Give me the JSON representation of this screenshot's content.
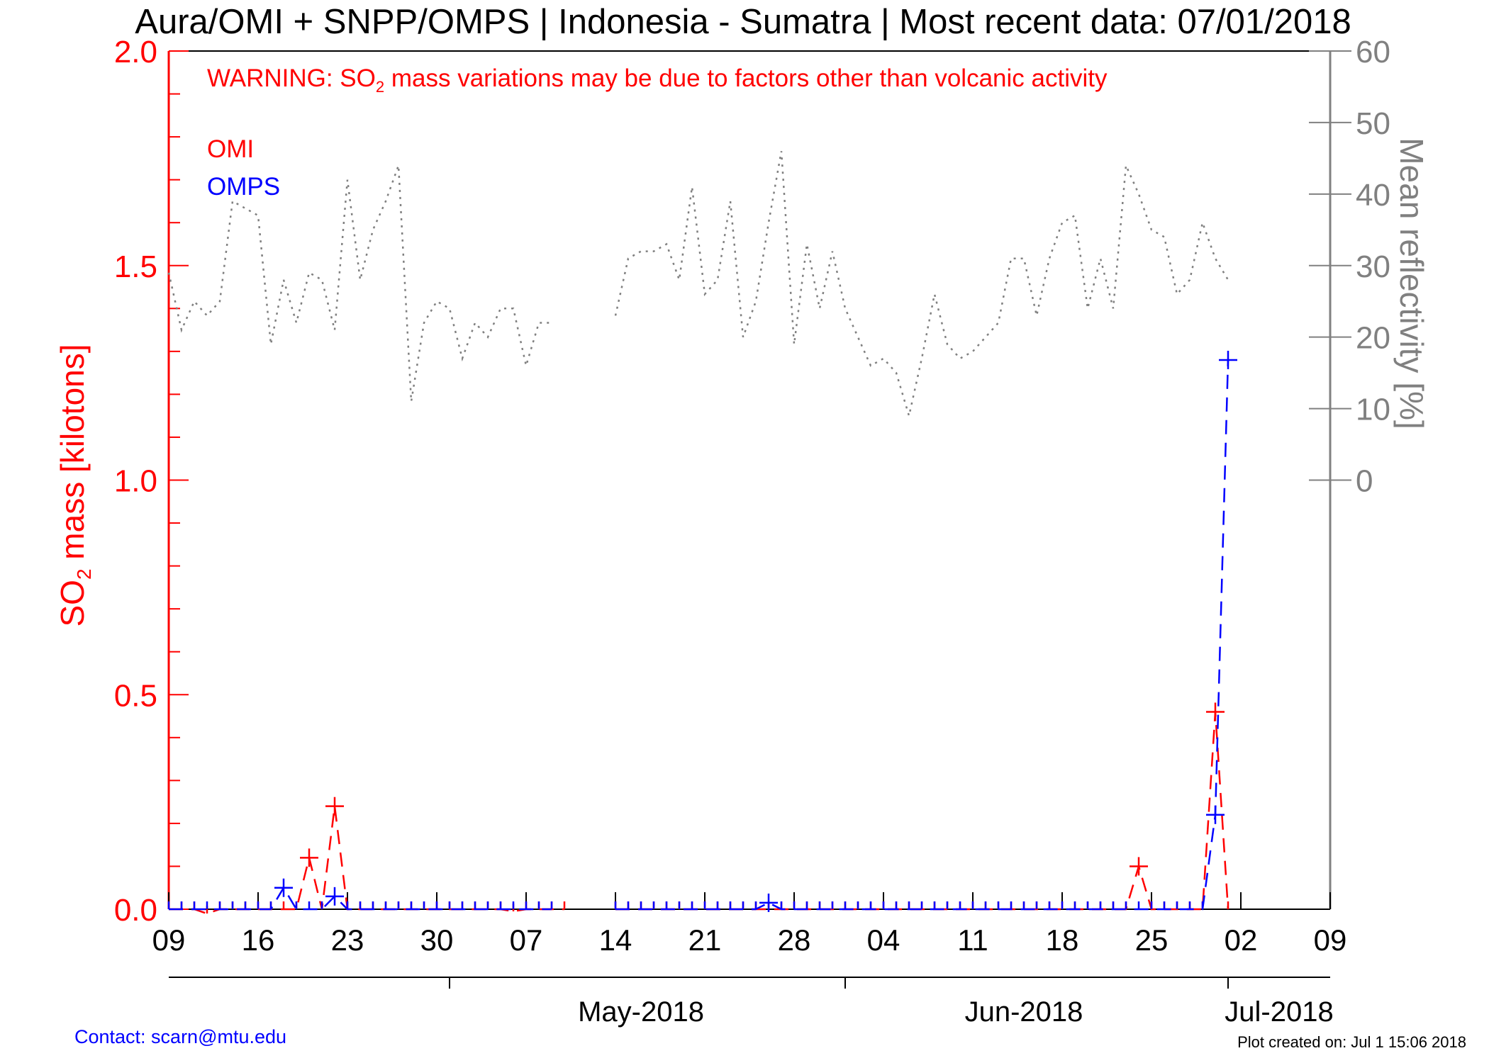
{
  "colors": {
    "omi": "#ff0000",
    "omps": "#0000ff",
    "reflectivity": "#808080",
    "axis": "#000000",
    "link": "#0000ff"
  },
  "title": "Aura/OMI + SNPP/OMPS | Indonesia - Sumatra | Most recent data: 07/01/2018",
  "warning": {
    "prefix": "WARNING: SO",
    "subscript": "2",
    "suffix": " mass variations may be due to factors other than volcanic activity"
  },
  "footer": {
    "contact": "Contact: scarn@mtu.edu",
    "created": "Plot created on: Jul  1 15:06 2018"
  },
  "chart_data": {
    "type": "line",
    "x_range": [
      "2018-04-09",
      "2018-07-09"
    ],
    "x_day_ticks": [
      "09",
      "16",
      "23",
      "30",
      "07",
      "14",
      "21",
      "28",
      "04",
      "11",
      "18",
      "25",
      "02",
      "09"
    ],
    "x_day_tick_dates": [
      "2018-04-09",
      "2018-04-16",
      "2018-04-23",
      "2018-04-30",
      "2018-05-07",
      "2018-05-14",
      "2018-05-21",
      "2018-05-28",
      "2018-06-04",
      "2018-06-11",
      "2018-06-18",
      "2018-06-25",
      "2018-07-02",
      "2018-07-09"
    ],
    "x_month_labels": [
      {
        "label": "May-2018",
        "date": "2018-05-16"
      },
      {
        "label": "Jun-2018",
        "date": "2018-06-15"
      },
      {
        "label": "Jul-2018",
        "date": "2018-07-05"
      }
    ],
    "x_month_dividers": [
      "2018-05-01",
      "2018-06-01",
      "2018-07-01"
    ],
    "y_left": {
      "label_prefix": "SO",
      "label_subscript": "2",
      "label_suffix": " mass [kilotons]",
      "range": [
        0.0,
        2.0
      ],
      "ticks": [
        "0.0",
        "0.5",
        "1.0",
        "1.5",
        "2.0"
      ]
    },
    "y_right": {
      "label": "Mean reflectivity [%]",
      "range": [
        -60,
        60
      ],
      "ticks": [
        "0",
        "10",
        "20",
        "30",
        "40",
        "50",
        "60"
      ]
    },
    "legend": [
      "OMI",
      "OMPS"
    ],
    "legend_position": "top-left",
    "series": [
      {
        "name": "OMI",
        "axis": "left",
        "style": "dashed",
        "marker": "plus",
        "points": [
          [
            "2018-04-09",
            0.0
          ],
          [
            "2018-04-10",
            0.0
          ],
          [
            "2018-04-11",
            0.0
          ],
          [
            "2018-04-12",
            -0.01
          ],
          [
            "2018-04-13",
            0.0
          ],
          [
            "2018-04-14",
            0.0
          ],
          [
            "2018-04-15",
            0.0
          ],
          [
            "2018-04-16",
            0.0
          ],
          [
            "2018-04-17",
            0.0
          ],
          [
            "2018-04-18",
            0.0
          ],
          [
            "2018-04-19",
            0.0
          ],
          [
            "2018-04-20",
            0.12
          ],
          [
            "2018-04-21",
            0.0
          ],
          [
            "2018-04-22",
            0.24
          ],
          [
            "2018-04-23",
            0.0
          ],
          [
            "2018-04-24",
            0.0
          ],
          [
            "2018-04-25",
            0.0
          ],
          [
            "2018-04-26",
            0.0
          ],
          [
            "2018-04-27",
            0.0
          ],
          [
            "2018-04-28",
            0.0
          ],
          [
            "2018-04-29",
            0.0
          ],
          [
            "2018-04-30",
            0.0
          ],
          [
            "2018-05-01",
            0.0
          ],
          [
            "2018-05-02",
            0.0
          ],
          [
            "2018-05-03",
            0.0
          ],
          [
            "2018-05-04",
            0.0
          ],
          [
            "2018-05-05",
            0.0
          ],
          [
            "2018-05-06",
            -0.005
          ],
          [
            "2018-05-07",
            0.0
          ],
          [
            "2018-05-08",
            0.0
          ],
          [
            "2018-05-09",
            0.0
          ],
          [
            "2018-05-10",
            0.0
          ],
          [
            "2018-05-14",
            0.0
          ],
          [
            "2018-05-15",
            0.0
          ],
          [
            "2018-05-16",
            0.0
          ],
          [
            "2018-05-17",
            0.0
          ],
          [
            "2018-05-18",
            0.0
          ],
          [
            "2018-05-19",
            0.0
          ],
          [
            "2018-05-20",
            0.0
          ],
          [
            "2018-05-21",
            0.0
          ],
          [
            "2018-05-22",
            0.0
          ],
          [
            "2018-05-23",
            0.0
          ],
          [
            "2018-05-24",
            0.0
          ],
          [
            "2018-05-25",
            0.0
          ],
          [
            "2018-05-26",
            0.0
          ],
          [
            "2018-05-27",
            0.0
          ],
          [
            "2018-05-28",
            0.0
          ],
          [
            "2018-05-29",
            0.0
          ],
          [
            "2018-05-30",
            0.0
          ],
          [
            "2018-05-31",
            0.0
          ],
          [
            "2018-06-01",
            0.0
          ],
          [
            "2018-06-02",
            0.0
          ],
          [
            "2018-06-03",
            0.0
          ],
          [
            "2018-06-04",
            0.0
          ],
          [
            "2018-06-05",
            0.0
          ],
          [
            "2018-06-06",
            0.0
          ],
          [
            "2018-06-07",
            0.0
          ],
          [
            "2018-06-08",
            0.0
          ],
          [
            "2018-06-09",
            0.0
          ],
          [
            "2018-06-10",
            0.0
          ],
          [
            "2018-06-11",
            0.0
          ],
          [
            "2018-06-12",
            0.0
          ],
          [
            "2018-06-13",
            0.0
          ],
          [
            "2018-06-14",
            0.0
          ],
          [
            "2018-06-15",
            0.0
          ],
          [
            "2018-06-16",
            0.0
          ],
          [
            "2018-06-17",
            0.0
          ],
          [
            "2018-06-18",
            0.0
          ],
          [
            "2018-06-19",
            0.0
          ],
          [
            "2018-06-20",
            0.0
          ],
          [
            "2018-06-21",
            0.0
          ],
          [
            "2018-06-22",
            0.0
          ],
          [
            "2018-06-23",
            0.0
          ],
          [
            "2018-06-24",
            0.1
          ],
          [
            "2018-06-25",
            0.0
          ],
          [
            "2018-06-26",
            0.0
          ],
          [
            "2018-06-27",
            0.0
          ],
          [
            "2018-06-28",
            0.0
          ],
          [
            "2018-06-29",
            0.0
          ],
          [
            "2018-06-30",
            0.46
          ],
          [
            "2018-07-01",
            0.0
          ]
        ]
      },
      {
        "name": "OMPS",
        "axis": "left",
        "style": "dashed",
        "marker": "plus",
        "points": [
          [
            "2018-04-09",
            0.0
          ],
          [
            "2018-04-10",
            0.0
          ],
          [
            "2018-04-11",
            0.0
          ],
          [
            "2018-04-12",
            0.0
          ],
          [
            "2018-04-13",
            0.0
          ],
          [
            "2018-04-14",
            0.0
          ],
          [
            "2018-04-15",
            0.0
          ],
          [
            "2018-04-16",
            0.0
          ],
          [
            "2018-04-17",
            0.0
          ],
          [
            "2018-04-18",
            0.05
          ],
          [
            "2018-04-19",
            0.0
          ],
          [
            "2018-04-20",
            0.0
          ],
          [
            "2018-04-21",
            0.0
          ],
          [
            "2018-04-22",
            0.03
          ],
          [
            "2018-04-23",
            0.0
          ],
          [
            "2018-04-24",
            0.0
          ],
          [
            "2018-04-25",
            0.0
          ],
          [
            "2018-04-26",
            0.0
          ],
          [
            "2018-04-27",
            0.0
          ],
          [
            "2018-04-28",
            0.0
          ],
          [
            "2018-04-29",
            0.0
          ],
          [
            "2018-04-30",
            0.0
          ],
          [
            "2018-05-01",
            0.0
          ],
          [
            "2018-05-02",
            0.0
          ],
          [
            "2018-05-03",
            0.0
          ],
          [
            "2018-05-04",
            0.0
          ],
          [
            "2018-05-05",
            0.0
          ],
          [
            "2018-05-06",
            0.0
          ],
          [
            "2018-05-07",
            0.0
          ],
          [
            "2018-05-08",
            0.0
          ],
          [
            "2018-05-09",
            0.0
          ],
          [
            "2018-05-14",
            0.0
          ],
          [
            "2018-05-15",
            0.0
          ],
          [
            "2018-05-16",
            0.0
          ],
          [
            "2018-05-17",
            0.0
          ],
          [
            "2018-05-18",
            0.0
          ],
          [
            "2018-05-19",
            0.0
          ],
          [
            "2018-05-20",
            0.0
          ],
          [
            "2018-05-21",
            0.0
          ],
          [
            "2018-05-22",
            0.0
          ],
          [
            "2018-05-23",
            0.0
          ],
          [
            "2018-05-24",
            0.0
          ],
          [
            "2018-05-25",
            0.0
          ],
          [
            "2018-05-26",
            0.015
          ],
          [
            "2018-05-27",
            0.0
          ],
          [
            "2018-05-28",
            0.0
          ],
          [
            "2018-05-29",
            0.0
          ],
          [
            "2018-05-30",
            0.0
          ],
          [
            "2018-05-31",
            0.0
          ],
          [
            "2018-06-01",
            0.0
          ],
          [
            "2018-06-02",
            0.0
          ],
          [
            "2018-06-03",
            0.0
          ],
          [
            "2018-06-04",
            0.0
          ],
          [
            "2018-06-05",
            0.0
          ],
          [
            "2018-06-06",
            0.0
          ],
          [
            "2018-06-07",
            0.0
          ],
          [
            "2018-06-08",
            0.0
          ],
          [
            "2018-06-09",
            0.0
          ],
          [
            "2018-06-10",
            0.0
          ],
          [
            "2018-06-11",
            0.0
          ],
          [
            "2018-06-12",
            0.0
          ],
          [
            "2018-06-13",
            0.0
          ],
          [
            "2018-06-14",
            0.0
          ],
          [
            "2018-06-15",
            0.0
          ],
          [
            "2018-06-16",
            0.0
          ],
          [
            "2018-06-17",
            0.0
          ],
          [
            "2018-06-18",
            0.0
          ],
          [
            "2018-06-19",
            0.0
          ],
          [
            "2018-06-20",
            0.0
          ],
          [
            "2018-06-21",
            0.0
          ],
          [
            "2018-06-22",
            0.0
          ],
          [
            "2018-06-23",
            0.0
          ],
          [
            "2018-06-24",
            0.0
          ],
          [
            "2018-06-25",
            0.0
          ],
          [
            "2018-06-26",
            0.0
          ],
          [
            "2018-06-27",
            0.0
          ],
          [
            "2018-06-28",
            0.0
          ],
          [
            "2018-06-29",
            0.0
          ],
          [
            "2018-06-30",
            0.22
          ],
          [
            "2018-07-01",
            1.28
          ]
        ]
      },
      {
        "name": "Mean reflectivity",
        "axis": "right",
        "style": "dotted",
        "points": [
          [
            "2018-04-09",
            29
          ],
          [
            "2018-04-10",
            21
          ],
          [
            "2018-04-11",
            25
          ],
          [
            "2018-04-12",
            23
          ],
          [
            "2018-04-13",
            25
          ],
          [
            "2018-04-14",
            39
          ],
          [
            "2018-04-15",
            38
          ],
          [
            "2018-04-16",
            37
          ],
          [
            "2018-04-17",
            19
          ],
          [
            "2018-04-18",
            28
          ],
          [
            "2018-04-19",
            22
          ],
          [
            "2018-04-20",
            29
          ],
          [
            "2018-04-21",
            28
          ],
          [
            "2018-04-22",
            21
          ],
          [
            "2018-04-23",
            42
          ],
          [
            "2018-04-24",
            28
          ],
          [
            "2018-04-25",
            35
          ],
          [
            "2018-04-26",
            39
          ],
          [
            "2018-04-27",
            44
          ],
          [
            "2018-04-28",
            11
          ],
          [
            "2018-04-29",
            22
          ],
          [
            "2018-04-30",
            25
          ],
          [
            "2018-05-01",
            24
          ],
          [
            "2018-05-02",
            17
          ],
          [
            "2018-05-03",
            22
          ],
          [
            "2018-05-04",
            20
          ],
          [
            "2018-05-05",
            24
          ],
          [
            "2018-05-06",
            24
          ],
          [
            "2018-05-07",
            16
          ],
          [
            "2018-05-08",
            22
          ],
          [
            "2018-05-09",
            22
          ],
          [
            "2018-05-14",
            23
          ],
          [
            "2018-05-15",
            31
          ],
          [
            "2018-05-16",
            32
          ],
          [
            "2018-05-17",
            32
          ],
          [
            "2018-05-18",
            33
          ],
          [
            "2018-05-19",
            28
          ],
          [
            "2018-05-20",
            41
          ],
          [
            "2018-05-21",
            26
          ],
          [
            "2018-05-22",
            28
          ],
          [
            "2018-05-23",
            39
          ],
          [
            "2018-05-24",
            20
          ],
          [
            "2018-05-25",
            25
          ],
          [
            "2018-05-26",
            36
          ],
          [
            "2018-05-27",
            46
          ],
          [
            "2018-05-28",
            19
          ],
          [
            "2018-05-29",
            33
          ],
          [
            "2018-05-30",
            24
          ],
          [
            "2018-05-31",
            32
          ],
          [
            "2018-06-01",
            24
          ],
          [
            "2018-06-02",
            20
          ],
          [
            "2018-06-03",
            16
          ],
          [
            "2018-06-04",
            17
          ],
          [
            "2018-06-05",
            15
          ],
          [
            "2018-06-06",
            9
          ],
          [
            "2018-06-07",
            17
          ],
          [
            "2018-06-08",
            26
          ],
          [
            "2018-06-09",
            19
          ],
          [
            "2018-06-10",
            17
          ],
          [
            "2018-06-11",
            18
          ],
          [
            "2018-06-12",
            20
          ],
          [
            "2018-06-13",
            22
          ],
          [
            "2018-06-14",
            31
          ],
          [
            "2018-06-15",
            31
          ],
          [
            "2018-06-16",
            23
          ],
          [
            "2018-06-17",
            31
          ],
          [
            "2018-06-18",
            36
          ],
          [
            "2018-06-19",
            37
          ],
          [
            "2018-06-20",
            24
          ],
          [
            "2018-06-21",
            31
          ],
          [
            "2018-06-22",
            24
          ],
          [
            "2018-06-23",
            44
          ],
          [
            "2018-06-24",
            40
          ],
          [
            "2018-06-25",
            35
          ],
          [
            "2018-06-26",
            34
          ],
          [
            "2018-06-27",
            26
          ],
          [
            "2018-06-28",
            28
          ],
          [
            "2018-06-29",
            36
          ],
          [
            "2018-06-30",
            31
          ],
          [
            "2018-07-01",
            28
          ]
        ]
      }
    ]
  }
}
